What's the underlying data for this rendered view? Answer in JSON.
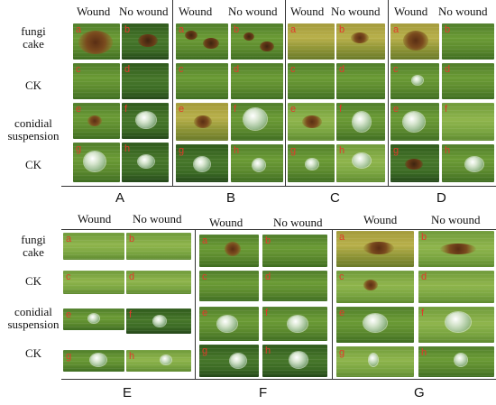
{
  "col_headers": {
    "wound": "Wound",
    "no_wound": "No wound"
  },
  "row_labels": {
    "fungi_cake_1": "fungi",
    "fungi_cake_2": "cake",
    "ck": "CK",
    "conidial_1": "conidial",
    "conidial_2": "suspension"
  },
  "tile_tags": [
    "a",
    "b",
    "c",
    "d",
    "e",
    "f",
    "g",
    "h"
  ],
  "panels": [
    "A",
    "B",
    "C",
    "D",
    "E",
    "F",
    "G"
  ]
}
